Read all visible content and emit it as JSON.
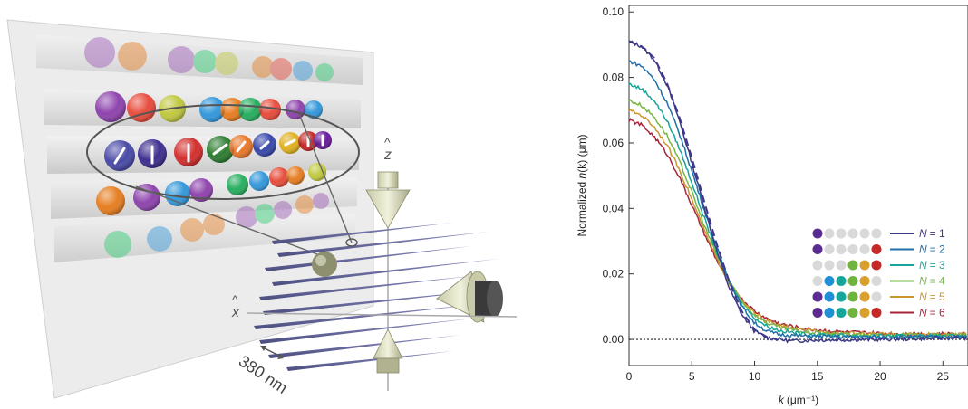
{
  "illustration": {
    "axis_z_label": "z",
    "axis_x_label": "x",
    "hat_symbol": "^",
    "spacing_label": "380 nm"
  },
  "chart_data": {
    "type": "line",
    "xlabel": "k (μm⁻¹)",
    "xlabel_parts": {
      "symbol": "k",
      "unit": "(μm⁻¹)"
    },
    "ylabel": "Normalized n(k) (μm)",
    "ylabel_parts": {
      "prefix": "Normalized ",
      "symbol": "n",
      "arg": "(k)",
      "unit": " (μm)"
    },
    "xlim": [
      0,
      27
    ],
    "ylim": [
      -0.008,
      0.102
    ],
    "xticks": [
      0,
      5,
      10,
      15,
      20,
      25
    ],
    "yticks": [
      0.0,
      0.02,
      0.04,
      0.06,
      0.08,
      0.1
    ],
    "ytick_labels": [
      "0.00",
      "0.02",
      "0.04",
      "0.06",
      "0.08",
      "0.10"
    ],
    "grid": false,
    "legend_position": "right",
    "dashed_curve": {
      "k": [
        0,
        1,
        2,
        3,
        4,
        5,
        6,
        7,
        8,
        9,
        10,
        11,
        11.8
      ],
      "n": [
        0.091,
        0.0895,
        0.086,
        0.0785,
        0.068,
        0.0555,
        0.042,
        0.029,
        0.0175,
        0.0085,
        0.003,
        0.0007,
        0.0
      ]
    },
    "zero_line": {
      "y": 0.0,
      "style": "dotted"
    },
    "series": [
      {
        "name": "N = 1",
        "label_symbol": "N",
        "label_value": "= 1",
        "color": "#3d3888",
        "k": [
          0,
          1,
          2,
          3,
          4,
          5,
          6,
          7,
          8,
          9,
          10,
          11,
          12,
          13,
          15,
          20,
          27
        ],
        "n": [
          0.091,
          0.0895,
          0.0855,
          0.078,
          0.067,
          0.054,
          0.0405,
          0.027,
          0.0155,
          0.0075,
          0.0025,
          0.0005,
          0.0,
          -0.0005,
          -0.0002,
          0.0,
          0.0005
        ],
        "pattern": [
          "#5b2c8f",
          "#d9d9d9",
          "#d9d9d9",
          "#d9d9d9",
          "#d9d9d9",
          "#d9d9d9"
        ]
      },
      {
        "name": "N = 2",
        "label_symbol": "N",
        "label_value": "= 2",
        "color": "#1f6fa8",
        "k": [
          0,
          1,
          2,
          3,
          4,
          5,
          6,
          7,
          8,
          9,
          10,
          11,
          12,
          14,
          17,
          20,
          27
        ],
        "n": [
          0.085,
          0.0835,
          0.0795,
          0.0725,
          0.063,
          0.0515,
          0.0395,
          0.028,
          0.0178,
          0.01,
          0.005,
          0.0025,
          0.0015,
          0.001,
          0.0008,
          0.0007,
          0.0008
        ],
        "pattern": [
          "#5b2c8f",
          "#d9d9d9",
          "#d9d9d9",
          "#d9d9d9",
          "#d9d9d9",
          "#c62828"
        ]
      },
      {
        "name": "N = 3",
        "label_symbol": "N",
        "label_value": "= 3",
        "color": "#16a59a",
        "k": [
          0,
          1,
          2,
          3,
          4,
          5,
          6,
          7,
          8,
          9,
          10,
          11,
          12,
          14,
          17,
          20,
          27
        ],
        "n": [
          0.078,
          0.0765,
          0.073,
          0.067,
          0.0585,
          0.048,
          0.037,
          0.0265,
          0.0175,
          0.0108,
          0.0065,
          0.004,
          0.0027,
          0.0016,
          0.0012,
          0.001,
          0.0011
        ],
        "pattern": [
          "#d9d9d9",
          "#d9d9d9",
          "#d9d9d9",
          "#6fb43f",
          "#d9a030",
          "#c62828"
        ]
      },
      {
        "name": "N = 4",
        "label_symbol": "N",
        "label_value": "= 4",
        "color": "#7ab648",
        "k": [
          0,
          1,
          2,
          3,
          4,
          5,
          6,
          7,
          8,
          9,
          10,
          11,
          12,
          14,
          17,
          20,
          27
        ],
        "n": [
          0.073,
          0.0715,
          0.068,
          0.0625,
          0.0545,
          0.045,
          0.0348,
          0.0255,
          0.0175,
          0.0115,
          0.0075,
          0.005,
          0.0036,
          0.0022,
          0.0016,
          0.0013,
          0.0013
        ],
        "pattern": [
          "#d9d9d9",
          "#1f8fd6",
          "#16a59a",
          "#6fb43f",
          "#d9a030",
          "#d9d9d9"
        ]
      },
      {
        "name": "N = 5",
        "label_symbol": "N",
        "label_value": "= 5",
        "color": "#c8962e",
        "k": [
          0,
          1,
          2,
          3,
          4,
          5,
          6,
          7,
          8,
          9,
          10,
          11,
          12,
          14,
          17,
          20,
          27
        ],
        "n": [
          0.07,
          0.0685,
          0.065,
          0.0595,
          0.052,
          0.0428,
          0.0332,
          0.0245,
          0.0172,
          0.0118,
          0.008,
          0.0057,
          0.0042,
          0.0027,
          0.002,
          0.0016,
          0.0015
        ],
        "pattern": [
          "#5b2c8f",
          "#1f8fd6",
          "#16a59a",
          "#6fb43f",
          "#d9a030",
          "#d9d9d9"
        ]
      },
      {
        "name": "N = 6",
        "label_symbol": "N",
        "label_value": "= 6",
        "color": "#a8243a",
        "k": [
          0,
          1,
          2,
          3,
          4,
          5,
          6,
          7,
          8,
          9,
          10,
          11,
          12,
          14,
          17,
          20,
          27
        ],
        "n": [
          0.067,
          0.0655,
          0.062,
          0.0568,
          0.0497,
          0.041,
          0.0322,
          0.024,
          0.0172,
          0.0122,
          0.0086,
          0.0063,
          0.0048,
          0.0032,
          0.0023,
          0.0018,
          0.0016
        ],
        "pattern": [
          "#5b2c8f",
          "#1f8fd6",
          "#16a59a",
          "#6fb43f",
          "#d9a030",
          "#c62828"
        ]
      }
    ]
  }
}
